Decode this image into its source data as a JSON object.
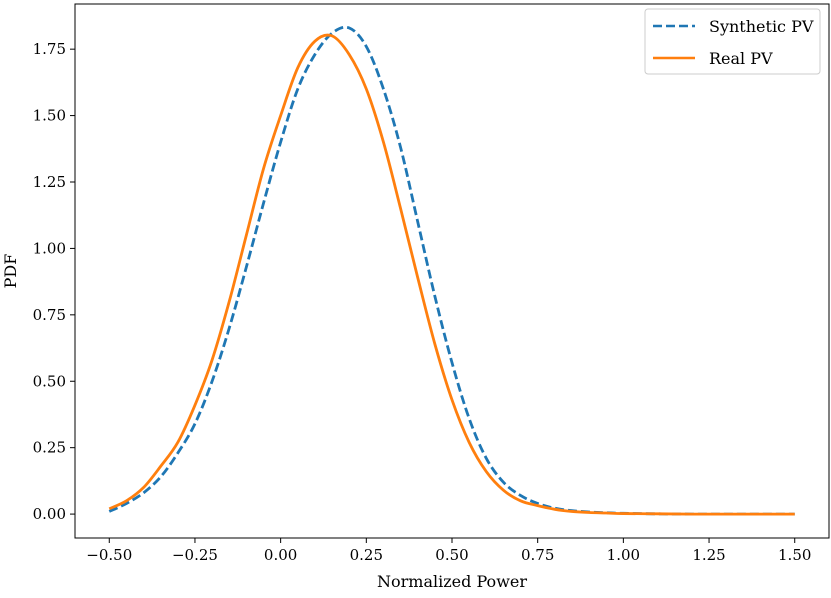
{
  "chart_data": {
    "type": "line",
    "title": "",
    "xlabel": "Normalized Power",
    "ylabel": "PDF",
    "xlim": [
      -0.6,
      1.6
    ],
    "ylim": [
      -0.09,
      1.92
    ],
    "x_ticks": [
      -0.5,
      -0.25,
      0.0,
      0.25,
      0.5,
      0.75,
      1.0,
      1.25,
      1.5
    ],
    "x_tick_labels": [
      "−0.50",
      "−0.25",
      "0.00",
      "0.25",
      "0.50",
      "0.75",
      "1.00",
      "1.25",
      "1.50"
    ],
    "y_ticks": [
      0.0,
      0.25,
      0.5,
      0.75,
      1.0,
      1.25,
      1.5,
      1.75
    ],
    "y_tick_labels": [
      "0.00",
      "0.25",
      "0.50",
      "0.75",
      "1.00",
      "1.25",
      "1.50",
      "1.75"
    ],
    "grid": false,
    "legend_position": "top-right",
    "x": [
      -0.5,
      -0.45,
      -0.4,
      -0.35,
      -0.3,
      -0.25,
      -0.2,
      -0.15,
      -0.1,
      -0.05,
      0.0,
      0.05,
      0.1,
      0.15,
      0.2,
      0.25,
      0.3,
      0.35,
      0.4,
      0.45,
      0.5,
      0.55,
      0.6,
      0.65,
      0.7,
      0.75,
      0.8,
      0.85,
      0.9,
      0.95,
      1.0,
      1.1,
      1.2,
      1.3,
      1.4,
      1.5
    ],
    "series": [
      {
        "name": "Synthetic PV",
        "color": "#1f77b4",
        "style": "dashed",
        "values": [
          0.01,
          0.04,
          0.08,
          0.14,
          0.23,
          0.34,
          0.5,
          0.7,
          0.93,
          1.17,
          1.4,
          1.6,
          1.73,
          1.81,
          1.83,
          1.76,
          1.6,
          1.38,
          1.1,
          0.82,
          0.57,
          0.36,
          0.21,
          0.12,
          0.07,
          0.04,
          0.022,
          0.013,
          0.008,
          0.005,
          0.003,
          0.001,
          0.0,
          0.0,
          0.0,
          0.0
        ]
      },
      {
        "name": "Real PV",
        "color": "#ff7f0e",
        "style": "solid",
        "values": [
          0.02,
          0.05,
          0.1,
          0.18,
          0.27,
          0.41,
          0.58,
          0.8,
          1.05,
          1.3,
          1.5,
          1.68,
          1.78,
          1.8,
          1.73,
          1.6,
          1.4,
          1.15,
          0.89,
          0.64,
          0.43,
          0.27,
          0.16,
          0.09,
          0.05,
          0.032,
          0.018,
          0.01,
          0.006,
          0.004,
          0.002,
          0.001,
          0.0,
          0.0,
          0.0,
          0.0
        ]
      }
    ]
  }
}
